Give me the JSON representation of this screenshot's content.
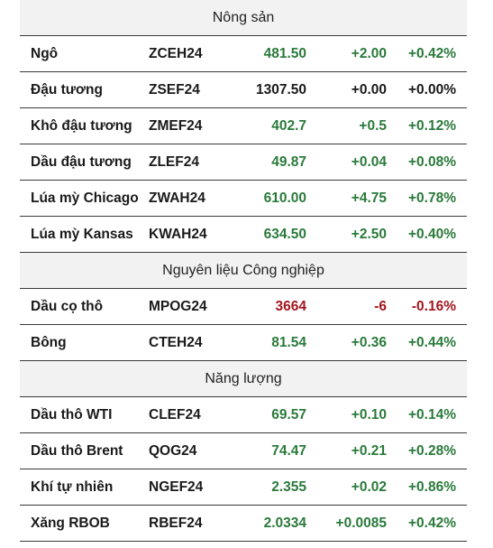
{
  "colors": {
    "up": "#2a7a3b",
    "flat": "#1a1a1a",
    "down": "#a3161e",
    "header_bg": "#f2f2f2"
  },
  "sections": [
    {
      "title": "Nông sản",
      "rows": [
        {
          "name": "Ngô",
          "code": "ZCEH24",
          "last": "481.50",
          "change": "+2.00",
          "pct": "+0.42%",
          "trend": "up"
        },
        {
          "name": "Đậu tương",
          "code": "ZSEF24",
          "last": "1307.50",
          "change": "+0.00",
          "pct": "+0.00%",
          "trend": "flat"
        },
        {
          "name": "Khô đậu tương",
          "code": "ZMEF24",
          "last": "402.7",
          "change": "+0.5",
          "pct": "+0.12%",
          "trend": "up"
        },
        {
          "name": "Dầu đậu tương",
          "code": "ZLEF24",
          "last": "49.87",
          "change": "+0.04",
          "pct": "+0.08%",
          "trend": "up"
        },
        {
          "name": "Lúa mỳ Chicago",
          "code": "ZWAH24",
          "last": "610.00",
          "change": "+4.75",
          "pct": "+0.78%",
          "trend": "up"
        },
        {
          "name": "Lúa mỳ Kansas",
          "code": "KWAH24",
          "last": "634.50",
          "change": "+2.50",
          "pct": "+0.40%",
          "trend": "up"
        }
      ]
    },
    {
      "title": "Nguyên liệu Công nghiệp",
      "rows": [
        {
          "name": "Dầu cọ thô",
          "code": "MPOG24",
          "last": "3664",
          "change": "-6",
          "pct": "-0.16%",
          "trend": "down"
        },
        {
          "name": "Bông",
          "code": "CTEH24",
          "last": "81.54",
          "change": "+0.36",
          "pct": "+0.44%",
          "trend": "up"
        }
      ]
    },
    {
      "title": "Năng lượng",
      "rows": [
        {
          "name": "Dầu thô WTI",
          "code": "CLEF24",
          "last": "69.57",
          "change": "+0.10",
          "pct": "+0.14%",
          "trend": "up"
        },
        {
          "name": "Dầu thô Brent",
          "code": "QOG24",
          "last": "74.47",
          "change": "+0.21",
          "pct": "+0.28%",
          "trend": "up"
        },
        {
          "name": "Khí tự nhiên",
          "code": "NGEF24",
          "last": "2.355",
          "change": "+0.02",
          "pct": "+0.86%",
          "trend": "up"
        },
        {
          "name": "Xăng RBOB",
          "code": "RBEF24",
          "last": "2.0334",
          "change": "+0.0085",
          "pct": "+0.42%",
          "trend": "up"
        }
      ]
    }
  ]
}
